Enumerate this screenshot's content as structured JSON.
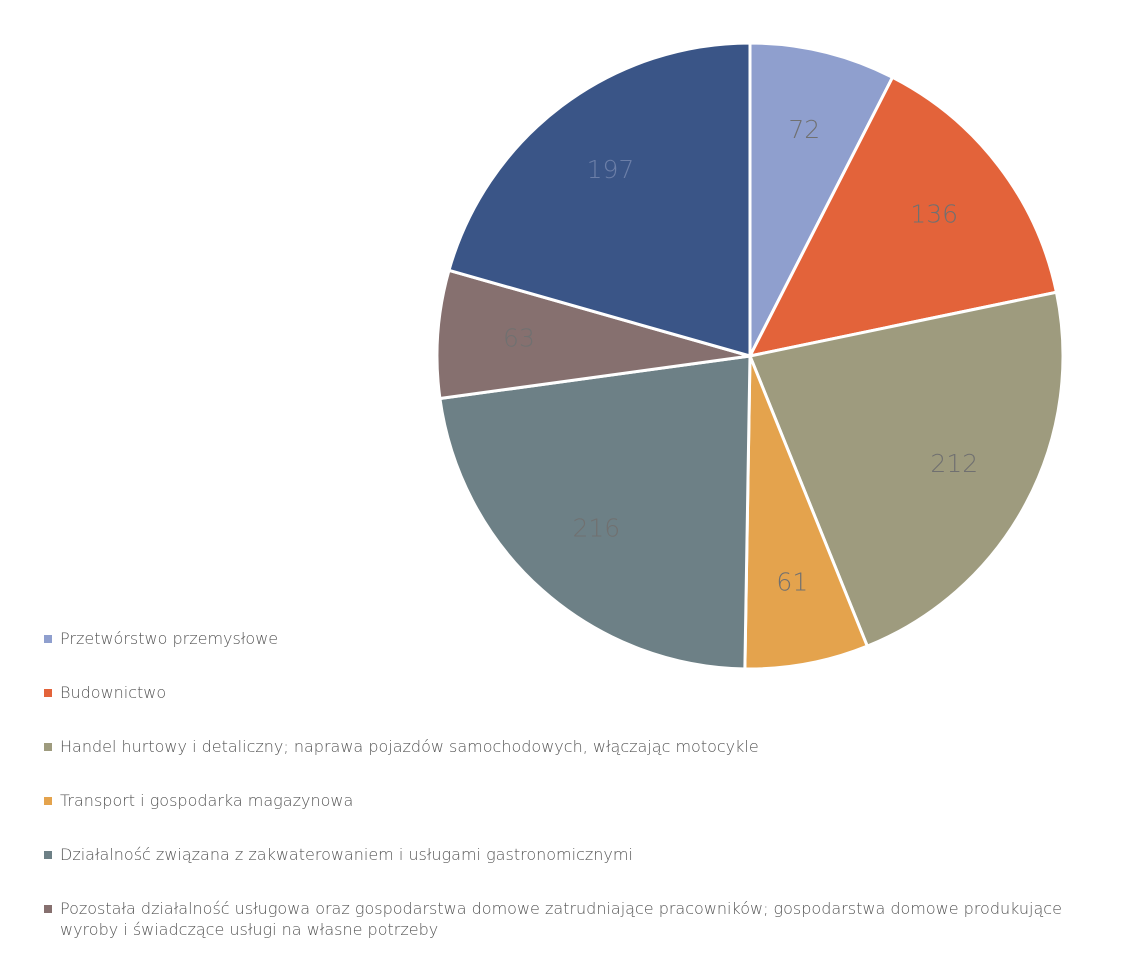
{
  "chart_data": {
    "type": "pie",
    "title": "",
    "start_angle_deg": 0,
    "direction": "clockwise",
    "legend_position": "bottom-left",
    "slices": [
      {
        "label": "Przetwórstwo przemysłowe",
        "value": 72,
        "display": "72",
        "color": "#8f9fce"
      },
      {
        "label": "Budownictwo",
        "value": 136,
        "display": "136",
        "color": "#e3633a"
      },
      {
        "label": "Handel hurtowy i detaliczny; naprawa pojazdów samochodowych, włączając motocykle",
        "value": 212,
        "display": "212",
        "color": "#9e9b7e"
      },
      {
        "label": "Transport i gospodarka magazynowa",
        "value": 61,
        "display": "61",
        "color": "#e4a34d"
      },
      {
        "label": "Działalność związana z zakwaterowaniem i usługami gastronomicznymi",
        "value": 216,
        "display": "216",
        "color": "#6d8086"
      },
      {
        "label": "Pozostała działalność usługowa oraz gospodarstwa domowe zatrudniające pracowników; gospodarstwa domowe produkujące wyroby i świadczące usługi na własne potrzeby",
        "value": 63,
        "display": "63",
        "color": "#86706f"
      },
      {
        "label": "",
        "value": 197,
        "display": "197",
        "color": "#3a5587",
        "label_color": "#6c7fa8"
      }
    ]
  }
}
